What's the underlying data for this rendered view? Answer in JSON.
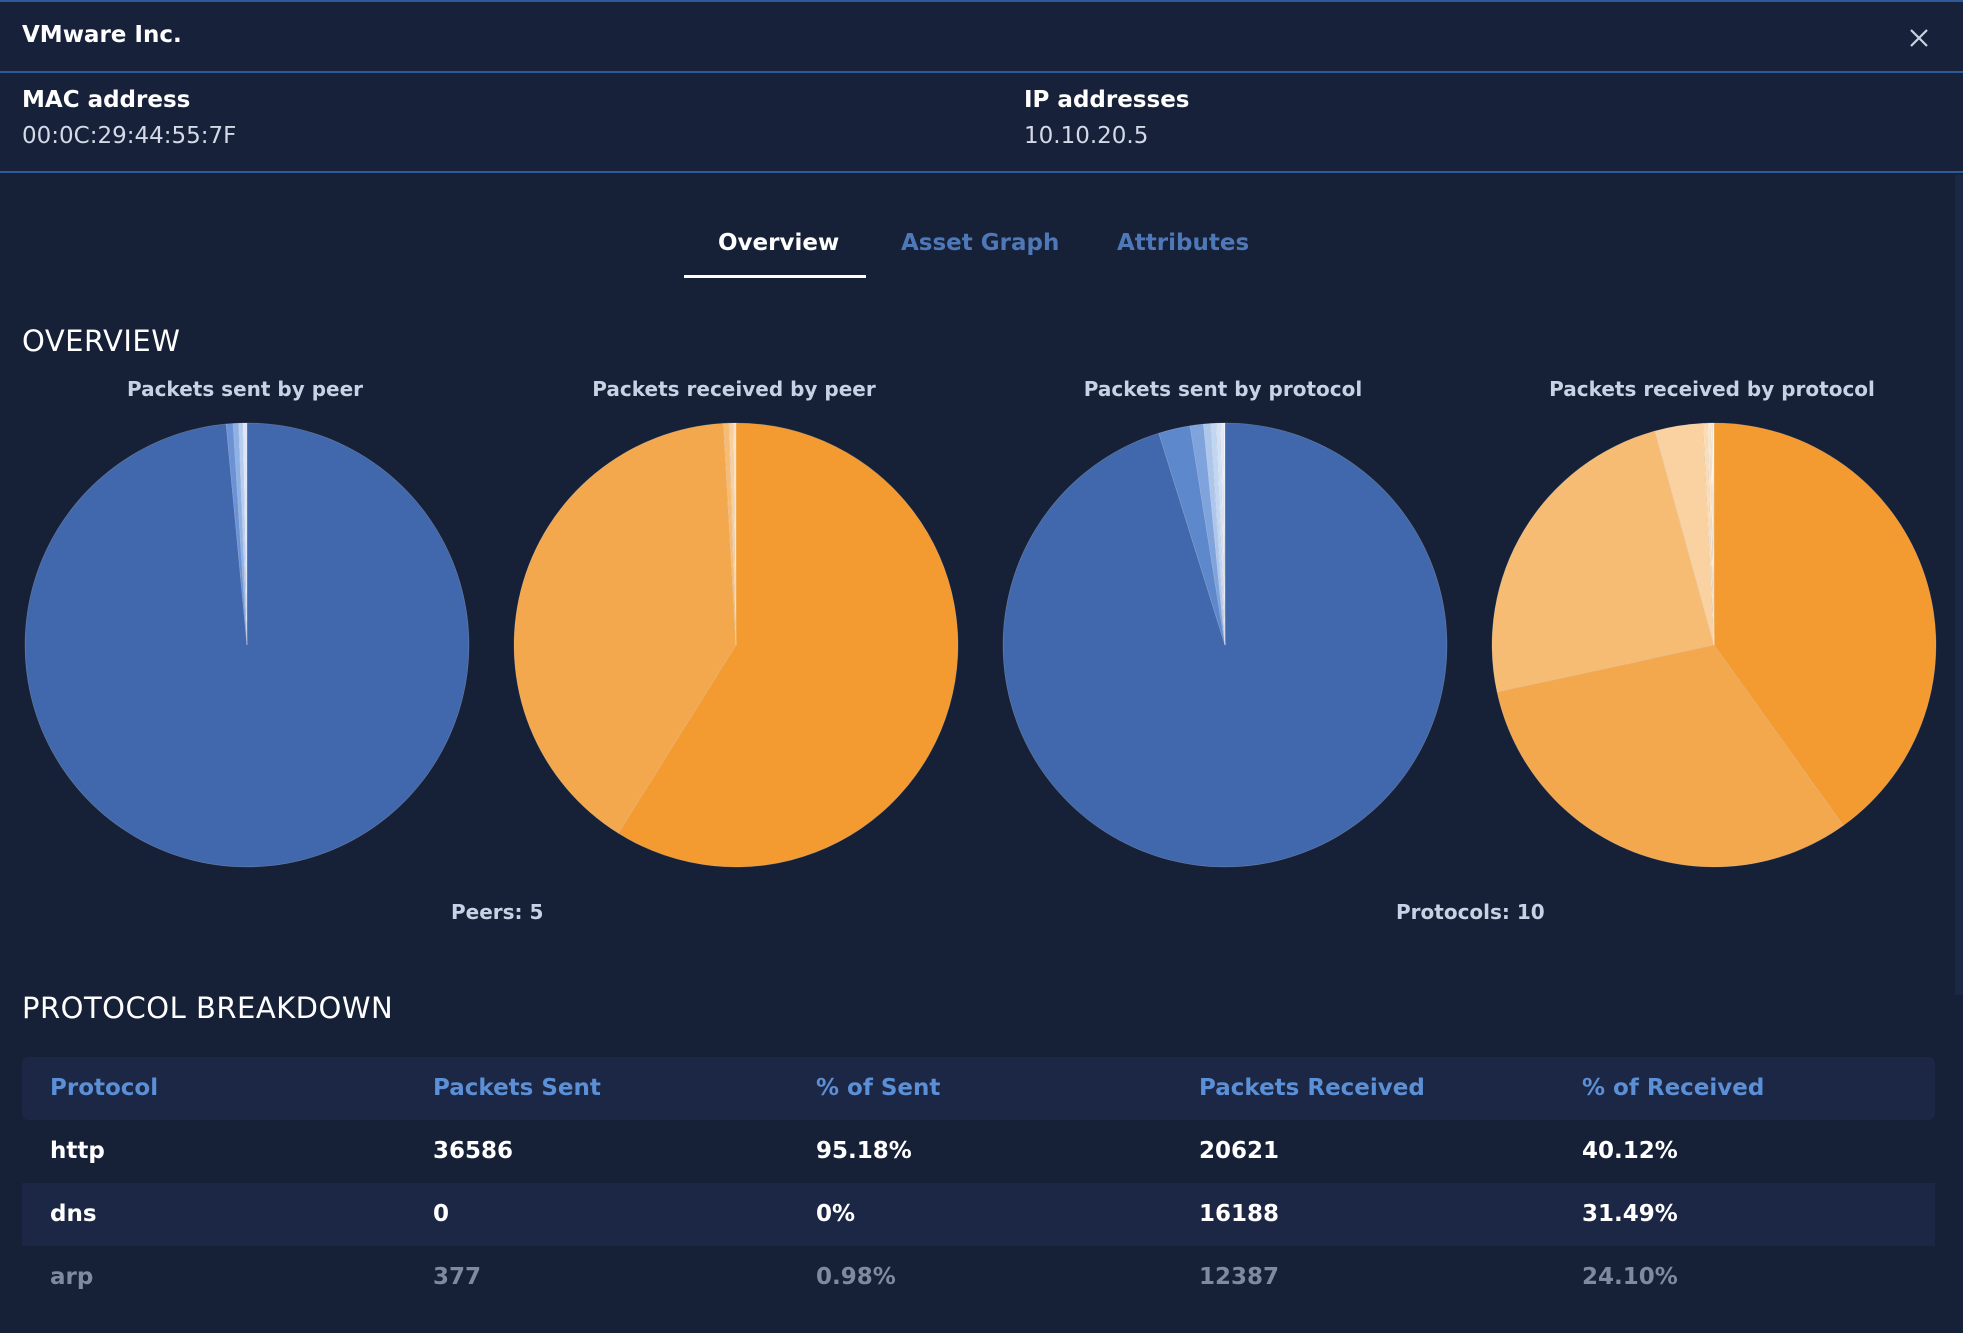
{
  "header": {
    "title": "VMware Inc."
  },
  "info": {
    "mac_label": "MAC address",
    "mac_value": "00:0C:29:44:55:7F",
    "ip_label": "IP addresses",
    "ip_value": "10.10.20.5"
  },
  "tabs": [
    {
      "label": "Overview",
      "active": true
    },
    {
      "label": "Asset Graph",
      "active": false
    },
    {
      "label": "Attributes",
      "active": false
    }
  ],
  "overview": {
    "title": "OVERVIEW",
    "peers_summary": "Peers: 5",
    "protocols_summary": "Protocols: 10"
  },
  "chart_data": [
    {
      "type": "pie",
      "title": "Packets sent by peer",
      "categories": [
        "",
        "",
        "",
        "",
        ""
      ],
      "values": [
        98.5,
        0.5,
        0.4,
        0.3,
        0.3
      ],
      "colors": [
        "#4168ac",
        "#6a92d4",
        "#8fb0e4",
        "#b7cdf0",
        "#dbe6f8"
      ]
    },
    {
      "type": "pie",
      "title": "Packets received by peer",
      "categories": [
        "",
        "",
        "",
        "",
        ""
      ],
      "values": [
        58.9,
        40.2,
        0.4,
        0.3,
        0.2
      ],
      "colors": [
        "#f39a30",
        "#f4a84e",
        "#f7bc74",
        "#f9cfa0",
        "#fbe2c6"
      ]
    },
    {
      "type": "pie",
      "title": "Packets sent by protocol",
      "categories": [
        "http",
        "",
        "arp",
        "dns",
        "",
        "",
        "",
        "",
        "",
        ""
      ],
      "values": [
        95.18,
        2.3,
        0.98,
        0.0,
        0.5,
        0.4,
        0.3,
        0.2,
        0.1,
        0.04
      ],
      "colors": [
        "#4168ac",
        "#5d88cc",
        "#7fa3dc",
        "#99b7e6",
        "#adc6ec",
        "#c2d5f1",
        "#d3e0f5",
        "#e1eaf8",
        "#edf2fb",
        "#f6f9fd"
      ]
    },
    {
      "type": "pie",
      "title": "Packets received by protocol",
      "categories": [
        "http",
        "dns",
        "arp",
        "",
        "",
        "",
        "",
        "",
        "",
        ""
      ],
      "values": [
        40.12,
        31.49,
        24.1,
        3.5,
        0.3,
        0.2,
        0.1,
        0.1,
        0.05,
        0.04
      ],
      "colors": [
        "#f39a30",
        "#f4a84e",
        "#f7bc74",
        "#fad1a0",
        "#fbdcb4",
        "#fce4c6",
        "#fdebd6",
        "#fef1e3",
        "#fef6ee",
        "#fffaf5"
      ]
    }
  ],
  "breakdown": {
    "title": "PROTOCOL BREAKDOWN",
    "columns": [
      "Protocol",
      "Packets Sent",
      "% of Sent",
      "Packets Received",
      "% of Received"
    ],
    "rows": [
      [
        "http",
        "36586",
        "95.18%",
        "20621",
        "40.12%"
      ],
      [
        "dns",
        "0",
        "0%",
        "16188",
        "31.49%"
      ],
      [
        "arp",
        "377",
        "0.98%",
        "12387",
        "24.10%"
      ]
    ]
  },
  "colors": {
    "background": "#162036",
    "accent": "#2f5a99",
    "blue_series": "#4168ac",
    "orange_series": "#f39a30"
  },
  "icons": {
    "close": "close-icon"
  }
}
